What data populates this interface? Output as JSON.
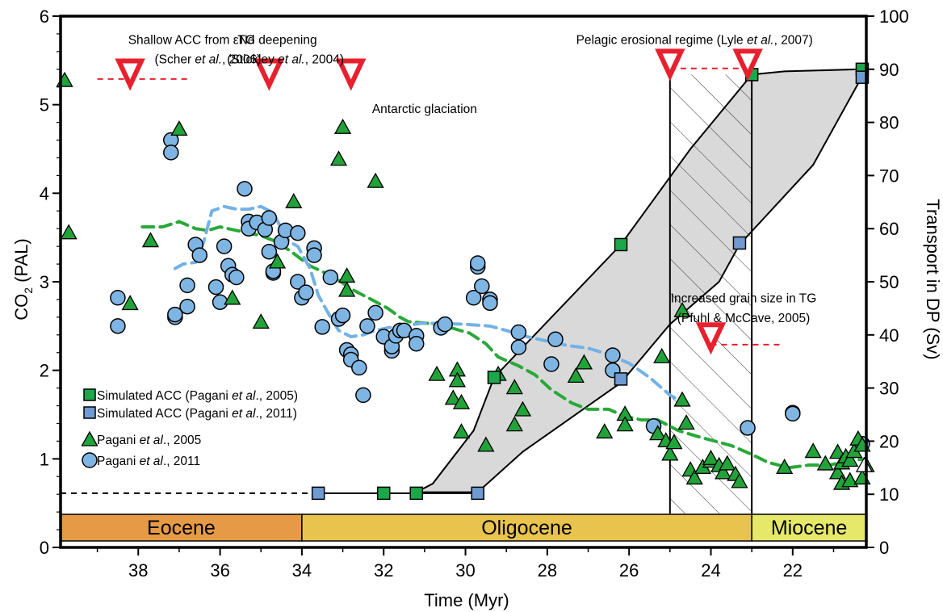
{
  "chart_data": {
    "type": "scatter",
    "xlabel": "Time (Myr)",
    "ylabel_left": "CO",
    "ylabel_left_sub": "2",
    "ylabel_left_suffix": " (PAL)",
    "ylabel_right": "Transport in DP (Sv)",
    "xlim": [
      39.9,
      20.2
    ],
    "ylim_left": [
      0,
      6
    ],
    "ylim_right": [
      0,
      100
    ],
    "x_ticks": [
      "38",
      "36",
      "34",
      "32",
      "30",
      "28",
      "26",
      "24",
      "22"
    ],
    "y_left_ticks": [
      "0",
      "1",
      "2",
      "3",
      "4",
      "5",
      "6"
    ],
    "y_right_ticks": [
      "0",
      "10",
      "20",
      "30",
      "40",
      "50",
      "60",
      "70",
      "80",
      "90",
      "100"
    ],
    "colors": {
      "green_marker": "#22a33a",
      "blue_marker": "#7fb5e3",
      "green_square": "#1aa84a",
      "blue_square": "#6f9bd1",
      "green_dash": "#2aa83a",
      "blue_dash": "#72b2e6",
      "red": "#e8202e",
      "band": "#d9d9d9",
      "eocene": "#e69a46",
      "oligocene": "#e8c34e",
      "miocene": "#e6e86a"
    },
    "epochs": [
      {
        "name": "Eocene",
        "from": 39.9,
        "to": 34
      },
      {
        "name": "Oligocene",
        "from": 34,
        "to": 23
      },
      {
        "name": "Miocene",
        "from": 23,
        "to": 20.2
      }
    ],
    "annotations": [
      {
        "text": "Shallow ACC from εNd",
        "x": 36.7,
        "y": 5.74
      },
      {
        "text": "(Scher et al., 2006)",
        "x": 36.3,
        "y": 5.52
      },
      {
        "text": "TG deepening",
        "x": 34.6,
        "y": 5.74
      },
      {
        "text": "(Stickley et al., 2004)",
        "x": 34.4,
        "y": 5.52
      },
      {
        "text": "Antarctic glaciation",
        "x": 31.0,
        "y": 4.96
      },
      {
        "text": "Pelagic erosional regime (Lyle et al., 2007)",
        "x": 24.4,
        "y": 5.74
      },
      {
        "text": "Increased grain size in TG",
        "x": 23.2,
        "y": 2.82
      },
      {
        "text": "(Pfuhl & McCave, 2005)",
        "x": 23.2,
        "y": 2.6
      }
    ],
    "events": [
      {
        "x": 38.2,
        "y": 5.33
      },
      {
        "x": 34.8,
        "y": 5.33
      },
      {
        "x": 32.8,
        "y": 5.33
      },
      {
        "x": 25.0,
        "y": 5.44
      },
      {
        "x": 23.1,
        "y": 5.44
      },
      {
        "x": 24.0,
        "y": 2.35
      }
    ],
    "event_lines": [
      {
        "x": [
          39.0,
          36.8
        ],
        "y": 5.29
      },
      {
        "x": [
          25.0,
          23.0
        ],
        "y": 5.41
      },
      {
        "x": [
          24.0,
          22.3
        ],
        "y": 2.29
      }
    ],
    "ghost_marker": {
      "x": 20.25,
      "y": 0.92
    },
    "band": {
      "upper": [
        [
          31.2,
          10.4
        ],
        [
          30.8,
          12.0
        ],
        [
          29.8,
          22.0
        ],
        [
          29.3,
          32.0
        ],
        [
          26.2,
          57.0
        ],
        [
          24.5,
          75.0
        ],
        [
          23.0,
          89.0
        ],
        [
          22.2,
          89.6
        ],
        [
          20.35,
          90.0
        ]
      ],
      "lower": [
        [
          31.2,
          10.4
        ],
        [
          29.7,
          10.4
        ],
        [
          28.6,
          18.0
        ],
        [
          26.2,
          31.0
        ],
        [
          25.0,
          42.0
        ],
        [
          23.8,
          50.0
        ],
        [
          23.3,
          57.0
        ],
        [
          21.5,
          72.0
        ],
        [
          20.35,
          88.0
        ]
      ]
    },
    "hatch_region": {
      "x": [
        25.0,
        23.0
      ],
      "y": [
        0,
        89.0
      ]
    },
    "series": [
      {
        "name": "Simulated ACC (Pagani et al., 2005)",
        "marker": "square",
        "axis": "right",
        "points": [
          [
            32.0,
            10.2
          ],
          [
            31.2,
            10.2
          ],
          [
            29.3,
            32.0
          ],
          [
            26.2,
            57.0
          ],
          [
            23.0,
            89.0
          ],
          [
            20.3,
            90.0
          ]
        ]
      },
      {
        "name": "Simulated ACC (Pagani et al., 2011)",
        "marker": "square",
        "axis": "right",
        "points": [
          [
            33.6,
            10.2
          ],
          [
            29.7,
            10.2
          ],
          [
            26.2,
            31.7
          ],
          [
            23.3,
            57.3
          ],
          [
            20.3,
            88.5
          ]
        ]
      },
      {
        "name": "Pagani et al., 2005",
        "marker": "triangle",
        "axis": "left",
        "points": [
          [
            39.8,
            5.27
          ],
          [
            39.7,
            3.55
          ],
          [
            38.2,
            2.75
          ],
          [
            37.7,
            3.46
          ],
          [
            37.0,
            4.72
          ],
          [
            35.7,
            2.81
          ],
          [
            35.0,
            2.54
          ],
          [
            34.6,
            3.22
          ],
          [
            34.2,
            3.9
          ],
          [
            33.1,
            4.38
          ],
          [
            33.0,
            4.74
          ],
          [
            32.9,
            3.06
          ],
          [
            32.9,
            2.9
          ],
          [
            32.2,
            4.13
          ],
          [
            30.7,
            1.95
          ],
          [
            30.3,
            1.68
          ],
          [
            30.2,
            2.0
          ],
          [
            30.2,
            1.88
          ],
          [
            30.1,
            1.3
          ],
          [
            30.1,
            1.63
          ],
          [
            29.5,
            1.15
          ],
          [
            29.2,
            1.95
          ],
          [
            28.8,
            1.8
          ],
          [
            28.6,
            1.55
          ],
          [
            28.8,
            1.38
          ],
          [
            27.3,
            1.93
          ],
          [
            27.1,
            2.08
          ],
          [
            26.6,
            1.3
          ],
          [
            26.1,
            1.5
          ],
          [
            26.1,
            1.38
          ],
          [
            25.2,
            2.15
          ],
          [
            25.3,
            1.28
          ],
          [
            25.1,
            1.2
          ],
          [
            25.0,
            1.05
          ],
          [
            24.9,
            1.18
          ],
          [
            24.7,
            2.67
          ],
          [
            24.7,
            1.66
          ],
          [
            24.6,
            1.4
          ],
          [
            24.5,
            0.87
          ],
          [
            24.4,
            0.78
          ],
          [
            24.2,
            0.9
          ],
          [
            24.0,
            0.97
          ],
          [
            24.0,
            1.0
          ],
          [
            23.8,
            0.92
          ],
          [
            23.7,
            0.84
          ],
          [
            23.6,
            0.94
          ],
          [
            23.4,
            0.82
          ],
          [
            23.3,
            0.74
          ],
          [
            22.2,
            0.9
          ],
          [
            21.5,
            1.08
          ],
          [
            21.2,
            0.94
          ],
          [
            20.9,
            1.07
          ],
          [
            20.9,
            0.84
          ],
          [
            20.8,
            0.95
          ],
          [
            20.8,
            0.72
          ],
          [
            20.7,
            1.02
          ],
          [
            20.6,
            0.98
          ],
          [
            20.6,
            0.75
          ],
          [
            20.5,
            1.08
          ],
          [
            20.4,
            1.22
          ],
          [
            20.3,
            1.15
          ],
          [
            20.3,
            0.78
          ],
          [
            20.2,
            0.92
          ]
        ]
      },
      {
        "name": "Pagani et al., 2011",
        "marker": "circle",
        "axis": "left",
        "points": [
          [
            38.5,
            2.5
          ],
          [
            38.5,
            2.82
          ],
          [
            37.2,
            4.6
          ],
          [
            37.2,
            4.46
          ],
          [
            37.1,
            2.6
          ],
          [
            37.1,
            2.63
          ],
          [
            36.8,
            2.72
          ],
          [
            36.8,
            2.96
          ],
          [
            36.6,
            3.42
          ],
          [
            36.5,
            3.3
          ],
          [
            36.1,
            2.94
          ],
          [
            36.0,
            2.77
          ],
          [
            35.9,
            3.4
          ],
          [
            35.8,
            3.18
          ],
          [
            35.7,
            3.08
          ],
          [
            35.6,
            3.05
          ],
          [
            35.4,
            4.05
          ],
          [
            35.3,
            3.68
          ],
          [
            35.3,
            3.6
          ],
          [
            35.1,
            3.67
          ],
          [
            34.9,
            3.59
          ],
          [
            34.8,
            3.72
          ],
          [
            34.8,
            3.34
          ],
          [
            34.7,
            3.1
          ],
          [
            34.7,
            3.12
          ],
          [
            34.5,
            3.45
          ],
          [
            34.4,
            3.58
          ],
          [
            34.1,
            3.55
          ],
          [
            34.1,
            3.0
          ],
          [
            34.0,
            2.82
          ],
          [
            33.9,
            2.88
          ],
          [
            33.7,
            3.38
          ],
          [
            33.7,
            3.3
          ],
          [
            33.5,
            2.49
          ],
          [
            33.3,
            3.05
          ],
          [
            33.1,
            2.58
          ],
          [
            33.0,
            2.62
          ],
          [
            32.9,
            2.23
          ],
          [
            32.8,
            2.18
          ],
          [
            32.8,
            2.12
          ],
          [
            32.6,
            2.03
          ],
          [
            32.5,
            1.72
          ],
          [
            32.4,
            2.5
          ],
          [
            32.2,
            2.65
          ],
          [
            32.0,
            2.38
          ],
          [
            31.8,
            2.22
          ],
          [
            31.8,
            2.27
          ],
          [
            31.7,
            2.39
          ],
          [
            31.6,
            2.45
          ],
          [
            31.5,
            2.45
          ],
          [
            31.2,
            2.39
          ],
          [
            31.2,
            2.3
          ],
          [
            30.6,
            2.48
          ],
          [
            30.5,
            2.52
          ],
          [
            29.8,
            2.82
          ],
          [
            29.6,
            2.95
          ],
          [
            29.7,
            3.17
          ],
          [
            29.7,
            3.21
          ],
          [
            29.4,
            2.8
          ],
          [
            29.4,
            2.76
          ],
          [
            28.7,
            2.43
          ],
          [
            28.7,
            2.26
          ],
          [
            27.8,
            2.35
          ],
          [
            27.9,
            2.07
          ],
          [
            26.4,
            2.17
          ],
          [
            26.4,
            2.0
          ],
          [
            25.4,
            1.37
          ],
          [
            23.1,
            1.35
          ],
          [
            22.0,
            1.52
          ],
          [
            22.0,
            1.51
          ],
          [
            20.3,
            1.17
          ]
        ]
      },
      {
        "name": "Pagani 2005 smoothed",
        "marker": "dash-line",
        "axis": "left",
        "points": [
          [
            37.9,
            3.62
          ],
          [
            37.4,
            3.62
          ],
          [
            37.0,
            3.68
          ],
          [
            36.6,
            3.6
          ],
          [
            36.3,
            3.58
          ],
          [
            36.0,
            3.62
          ],
          [
            35.6,
            3.58
          ],
          [
            35.3,
            3.55
          ],
          [
            35.0,
            3.52
          ],
          [
            34.6,
            3.45
          ],
          [
            34.2,
            3.32
          ],
          [
            33.8,
            3.18
          ],
          [
            33.2,
            3.05
          ],
          [
            32.8,
            2.92
          ],
          [
            32.3,
            2.8
          ],
          [
            31.9,
            2.7
          ],
          [
            31.6,
            2.6
          ],
          [
            31.4,
            2.55
          ],
          [
            30.9,
            2.53
          ],
          [
            30.5,
            2.5
          ],
          [
            29.9,
            2.42
          ],
          [
            29.5,
            2.3
          ],
          [
            29.2,
            2.15
          ],
          [
            28.7,
            2.05
          ],
          [
            28.3,
            1.95
          ],
          [
            27.9,
            1.78
          ],
          [
            27.4,
            1.63
          ],
          [
            27.0,
            1.56
          ],
          [
            26.5,
            1.56
          ],
          [
            26.1,
            1.48
          ],
          [
            25.7,
            1.44
          ],
          [
            25.3,
            1.44
          ],
          [
            24.8,
            1.32
          ],
          [
            24.3,
            1.25
          ],
          [
            23.9,
            1.2
          ],
          [
            23.5,
            1.15
          ],
          [
            23.0,
            1.05
          ],
          [
            22.6,
            0.96
          ],
          [
            22.1,
            0.9
          ],
          [
            21.6,
            0.93
          ],
          [
            21.1,
            0.93
          ],
          [
            20.6,
            0.98
          ],
          [
            20.2,
            1.0
          ]
        ]
      },
      {
        "name": "Pagani 2011 smoothed",
        "marker": "dash-line",
        "axis": "left",
        "points": [
          [
            37.1,
            3.15
          ],
          [
            36.9,
            3.2
          ],
          [
            36.6,
            3.22
          ],
          [
            36.4,
            3.45
          ],
          [
            36.2,
            3.8
          ],
          [
            35.9,
            3.85
          ],
          [
            35.6,
            3.82
          ],
          [
            35.3,
            3.82
          ],
          [
            35.0,
            3.85
          ],
          [
            34.7,
            3.78
          ],
          [
            34.5,
            3.6
          ],
          [
            34.3,
            3.45
          ],
          [
            34.1,
            3.4
          ],
          [
            33.8,
            3.15
          ],
          [
            33.6,
            2.85
          ],
          [
            33.3,
            2.6
          ],
          [
            33.1,
            2.45
          ],
          [
            32.8,
            2.38
          ],
          [
            32.5,
            2.4
          ],
          [
            32.2,
            2.45
          ],
          [
            31.9,
            2.48
          ],
          [
            31.5,
            2.5
          ],
          [
            31.1,
            2.53
          ],
          [
            30.6,
            2.53
          ],
          [
            30.0,
            2.52
          ],
          [
            29.4,
            2.5
          ],
          [
            29.0,
            2.45
          ],
          [
            28.5,
            2.38
          ],
          [
            28.0,
            2.33
          ],
          [
            27.5,
            2.28
          ],
          [
            27.0,
            2.25
          ],
          [
            26.5,
            2.18
          ],
          [
            26.0,
            2.08
          ],
          [
            25.5,
            1.92
          ],
          [
            25.0,
            1.72
          ],
          [
            24.6,
            1.62
          ]
        ]
      }
    ],
    "legend": [
      {
        "marker": "square-green",
        "label": "Simulated ACC  (Pagani ",
        "italic": "et al",
        "suffix": "., 2005)"
      },
      {
        "marker": "square-blue",
        "label": "Simulated ACC (Pagani ",
        "italic": "et al",
        "suffix": "., 2011)"
      },
      {
        "marker": "triangle",
        "label": "Pagani ",
        "italic": "et al",
        "suffix": "., 2005"
      },
      {
        "marker": "circle",
        "label": "Pagani ",
        "italic": "et al",
        "suffix": "., 2011"
      }
    ]
  }
}
